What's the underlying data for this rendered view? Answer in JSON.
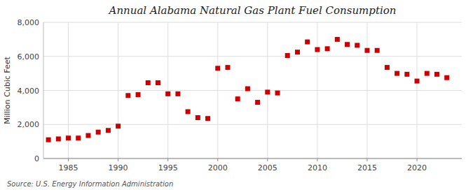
{
  "chart_data": {
    "type": "scatter",
    "title": "Annual Alabama Natural Gas Plant Fuel Consumption",
    "y_label": "Million Cubic Feet",
    "source": "Source: U.S. Energy Information Administration",
    "color": "#cc0000",
    "marker": "square",
    "grid": true,
    "x": [
      1983,
      1984,
      1985,
      1986,
      1987,
      1988,
      1989,
      1990,
      1991,
      1992,
      1993,
      1994,
      1995,
      1996,
      1997,
      1998,
      1999,
      2000,
      2001,
      2002,
      2003,
      2004,
      2005,
      2006,
      2007,
      2008,
      2009,
      2010,
      2011,
      2012,
      2013,
      2014,
      2015,
      2016,
      2017,
      2018,
      2019,
      2020,
      2021,
      2022,
      2023
    ],
    "values": [
      1100,
      1150,
      1200,
      1200,
      1350,
      1550,
      1650,
      1900,
      3700,
      3750,
      4450,
      4450,
      3800,
      3800,
      2750,
      2400,
      2350,
      5300,
      5350,
      3500,
      4100,
      3300,
      3900,
      3850,
      6050,
      6250,
      6850,
      6400,
      6450,
      7000,
      6700,
      6650,
      6350,
      6350,
      5350,
      5000,
      4950,
      4550,
      5000,
      4950,
      4750
    ],
    "xlim": [
      1982.5,
      2024.5
    ],
    "xticks": [
      1985,
      1990,
      1995,
      2000,
      2005,
      2010,
      2015,
      2020
    ],
    "ylim": [
      0,
      8000
    ],
    "yticks": [
      0,
      {
        "value": 2000,
        "label": "2,000"
      },
      {
        "value": 4000,
        "label": "4,000"
      },
      {
        "value": 6000,
        "label": "6,000"
      },
      {
        "value": 8000,
        "label": "8,000"
      }
    ]
  }
}
